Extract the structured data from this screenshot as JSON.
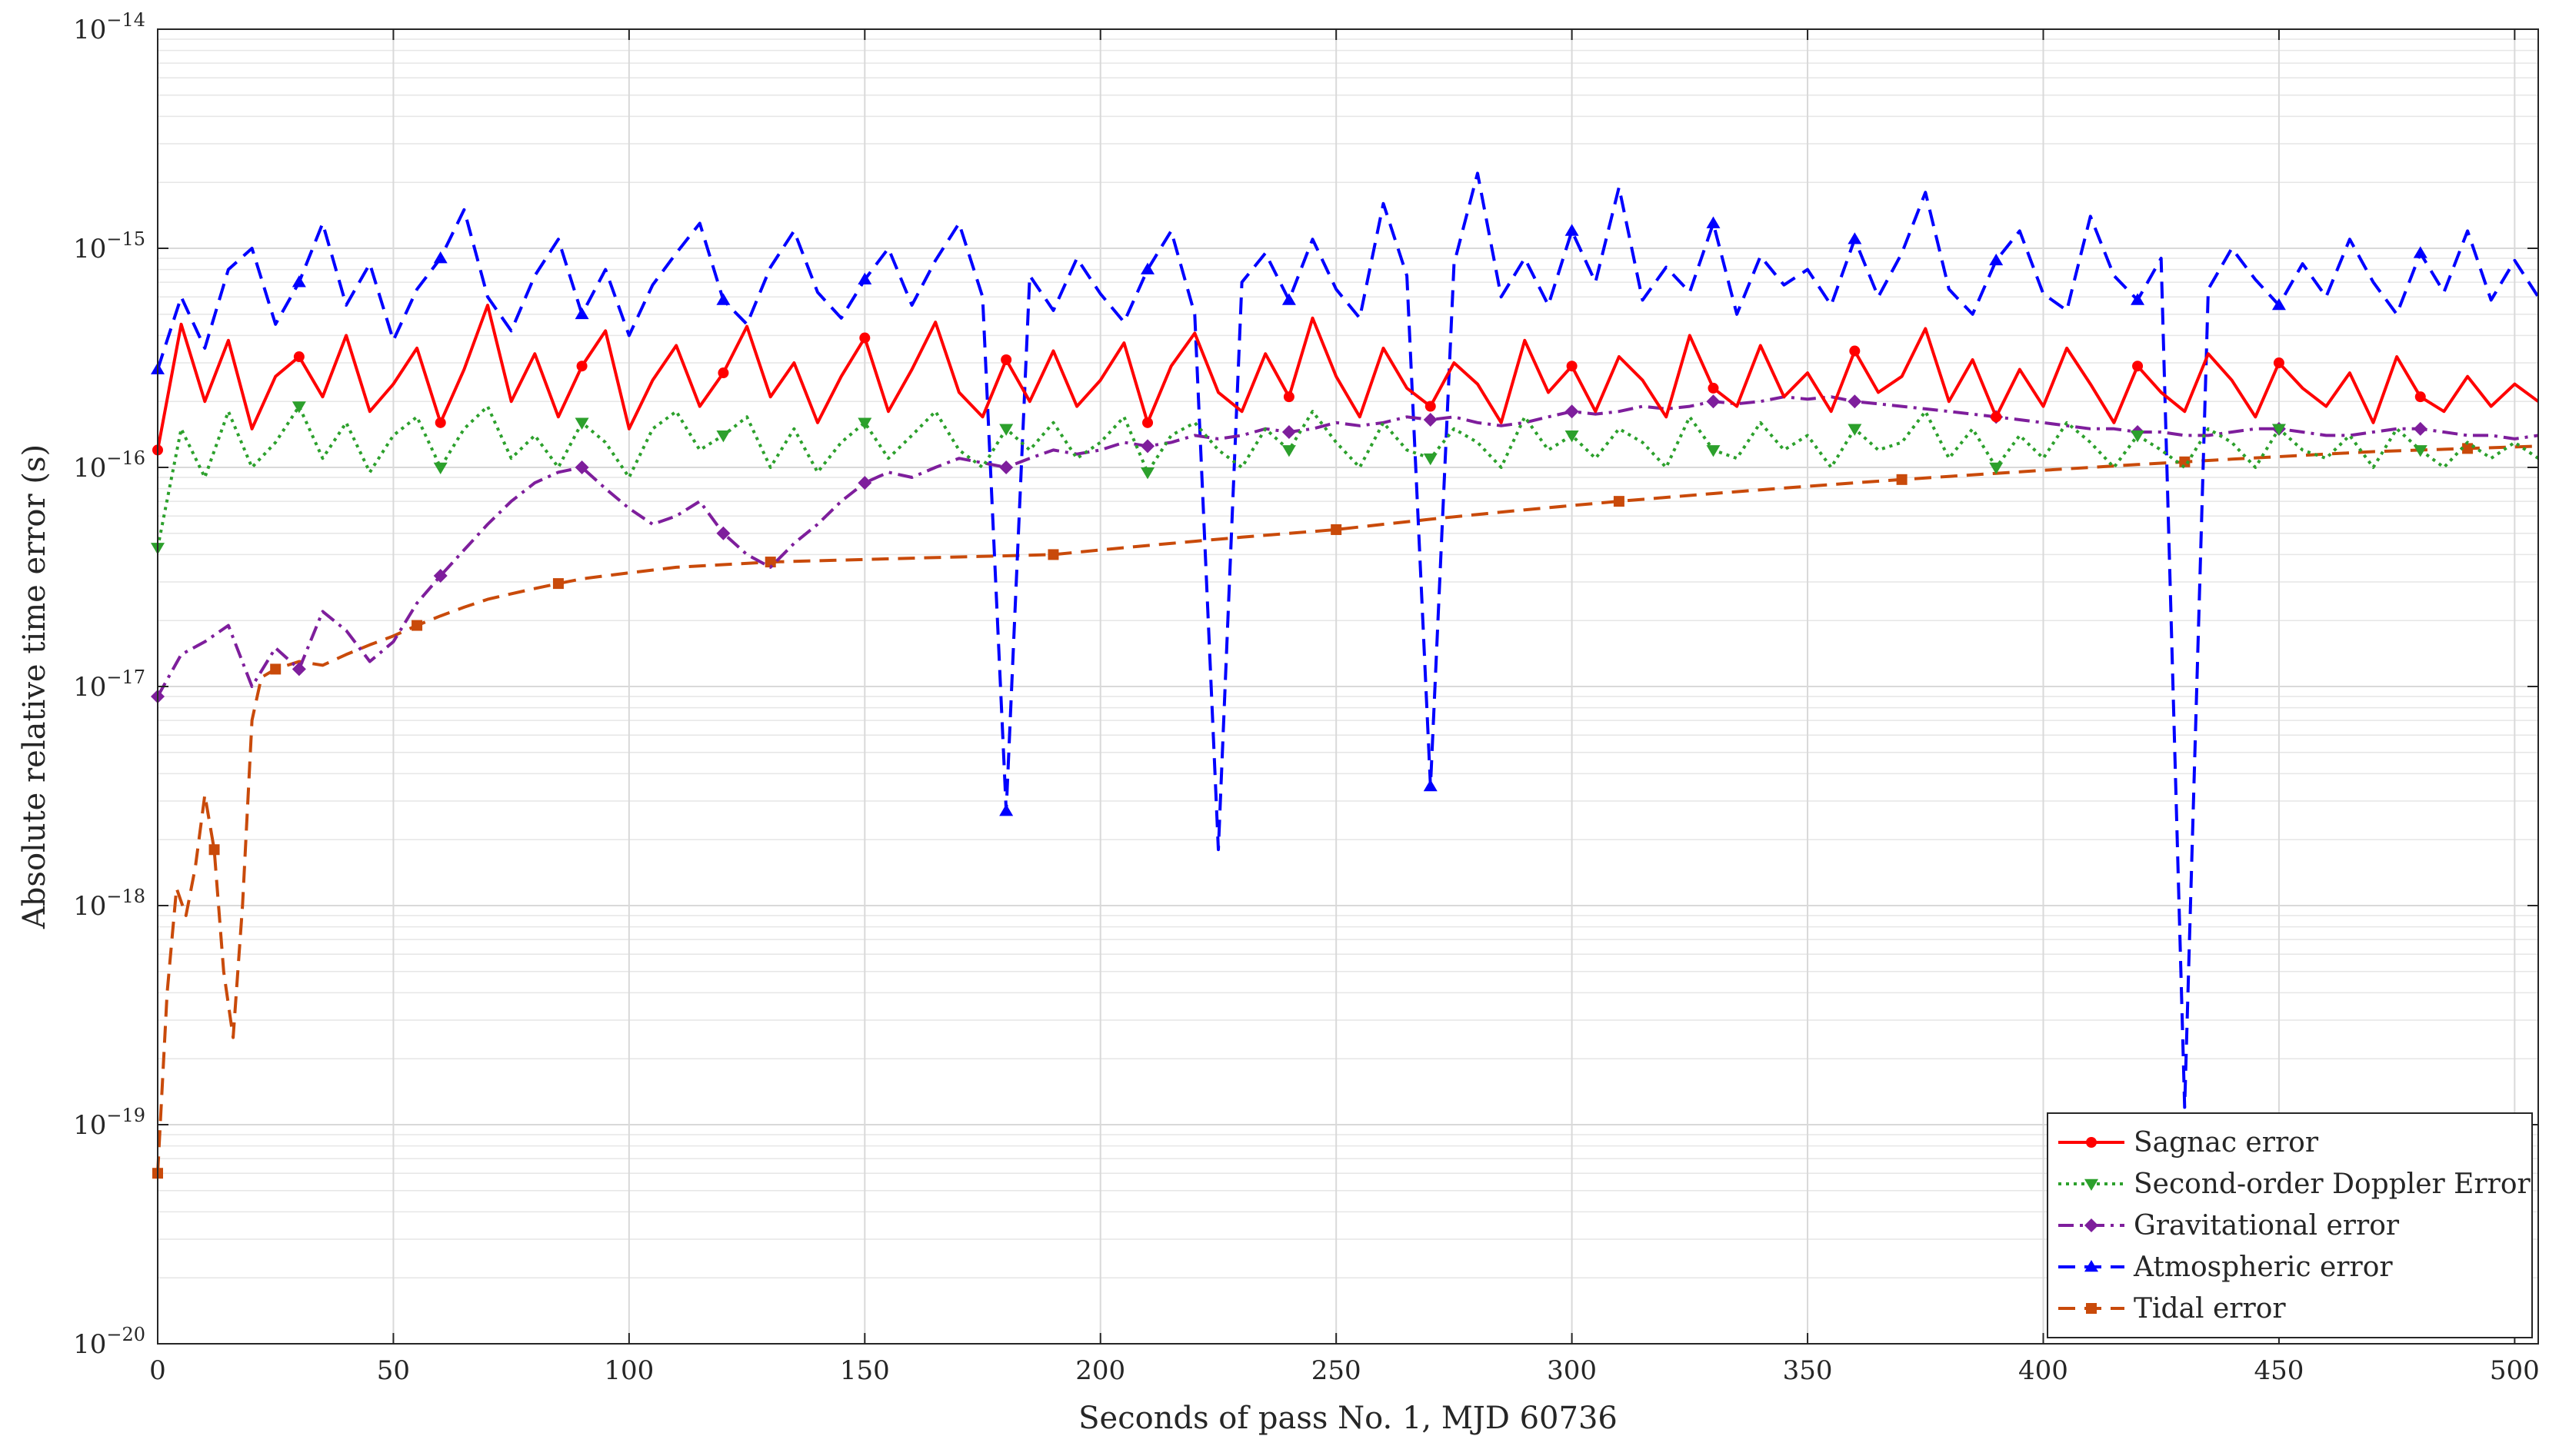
{
  "chart_data": {
    "type": "line",
    "title": "",
    "xlabel": "Seconds of pass No. 1, MJD 60736",
    "ylabel": "Absolute relative time error (s)",
    "xlim": [
      0,
      505
    ],
    "ylim": [
      1e-20,
      1e-14
    ],
    "yscale": "log",
    "grid": true,
    "minor_grid": true,
    "legend_position": "bottom-right",
    "x_ticks": [
      0,
      50,
      100,
      150,
      200,
      250,
      300,
      350,
      400,
      450,
      500
    ],
    "x_tick_labels": [
      "0",
      "50",
      "100",
      "150",
      "200",
      "250",
      "300",
      "350",
      "400",
      "450",
      "500"
    ],
    "y_ticks": [
      1e-20,
      1e-19,
      1e-18,
      1e-17,
      1e-16,
      1e-15,
      1e-14
    ],
    "y_tick_labels": [
      {
        "base": "10",
        "exp": "−20"
      },
      {
        "base": "10",
        "exp": "−19"
      },
      {
        "base": "10",
        "exp": "−18"
      },
      {
        "base": "10",
        "exp": "−17"
      },
      {
        "base": "10",
        "exp": "−16"
      },
      {
        "base": "10",
        "exp": "−15"
      },
      {
        "base": "10",
        "exp": "−14"
      }
    ],
    "series": [
      {
        "name": "Sagnac error",
        "color": "#ff0000",
        "style": "solid",
        "marker": "circle",
        "x": [
          0,
          5,
          10,
          15,
          20,
          25,
          30,
          35,
          40,
          45,
          50,
          55,
          60,
          65,
          70,
          75,
          80,
          85,
          90,
          95,
          100,
          105,
          110,
          115,
          120,
          125,
          130,
          135,
          140,
          145,
          150,
          155,
          160,
          165,
          170,
          175,
          180,
          185,
          190,
          195,
          200,
          205,
          210,
          215,
          220,
          225,
          230,
          235,
          240,
          245,
          250,
          255,
          260,
          265,
          270,
          275,
          280,
          285,
          290,
          295,
          300,
          305,
          310,
          315,
          320,
          325,
          330,
          335,
          340,
          345,
          350,
          355,
          360,
          365,
          370,
          375,
          380,
          385,
          390,
          395,
          400,
          405,
          410,
          415,
          420,
          425,
          430,
          435,
          440,
          445,
          450,
          455,
          460,
          465,
          470,
          475,
          480,
          485,
          490,
          495,
          500,
          505
        ],
        "y": [
          1.2e-16,
          4.5e-16,
          2e-16,
          3.8e-16,
          1.5e-16,
          2.6e-16,
          3.2e-16,
          2.1e-16,
          4e-16,
          1.8e-16,
          2.4e-16,
          3.5e-16,
          1.6e-16,
          2.8e-16,
          5.5e-16,
          2e-16,
          3.3e-16,
          1.7e-16,
          2.9e-16,
          4.2e-16,
          1.5e-16,
          2.5e-16,
          3.6e-16,
          1.9e-16,
          2.7e-16,
          4.4e-16,
          2.1e-16,
          3e-16,
          1.6e-16,
          2.6e-16,
          3.9e-16,
          1.8e-16,
          2.8e-16,
          4.6e-16,
          2.2e-16,
          1.7e-16,
          3.1e-16,
          2e-16,
          3.4e-16,
          1.9e-16,
          2.5e-16,
          3.7e-16,
          1.6e-16,
          2.9e-16,
          4.1e-16,
          2.2e-16,
          1.8e-16,
          3.3e-16,
          2.1e-16,
          4.8e-16,
          2.6e-16,
          1.7e-16,
          3.5e-16,
          2.3e-16,
          1.9e-16,
          3e-16,
          2.4e-16,
          1.6e-16,
          3.8e-16,
          2.2e-16,
          2.9e-16,
          1.8e-16,
          3.2e-16,
          2.5e-16,
          1.7e-16,
          4e-16,
          2.3e-16,
          1.9e-16,
          3.6e-16,
          2.1e-16,
          2.7e-16,
          1.8e-16,
          3.4e-16,
          2.2e-16,
          2.6e-16,
          4.3e-16,
          2e-16,
          3.1e-16,
          1.7e-16,
          2.8e-16,
          1.9e-16,
          3.5e-16,
          2.4e-16,
          1.6e-16,
          2.9e-16,
          2.2e-16,
          1.8e-16,
          3.3e-16,
          2.5e-16,
          1.7e-16,
          3e-16,
          2.3e-16,
          1.9e-16,
          2.7e-16,
          1.6e-16,
          3.2e-16,
          2.1e-16,
          1.8e-16,
          2.6e-16,
          1.9e-16,
          2.4e-16,
          2e-16
        ]
      },
      {
        "name": "Second-order Doppler Error",
        "color": "#2ca02c",
        "style": "dotted",
        "marker": "triangle-down",
        "x": [
          0,
          5,
          10,
          15,
          20,
          25,
          30,
          35,
          40,
          45,
          50,
          55,
          60,
          65,
          70,
          75,
          80,
          85,
          90,
          95,
          100,
          105,
          110,
          115,
          120,
          125,
          130,
          135,
          140,
          145,
          150,
          155,
          160,
          165,
          170,
          175,
          180,
          185,
          190,
          195,
          200,
          205,
          210,
          215,
          220,
          225,
          230,
          235,
          240,
          245,
          250,
          255,
          260,
          265,
          270,
          275,
          280,
          285,
          290,
          295,
          300,
          305,
          310,
          315,
          320,
          325,
          330,
          335,
          340,
          345,
          350,
          355,
          360,
          365,
          370,
          375,
          380,
          385,
          390,
          395,
          400,
          405,
          410,
          415,
          420,
          425,
          430,
          435,
          440,
          445,
          450,
          455,
          460,
          465,
          470,
          475,
          480,
          485,
          490,
          495,
          500,
          505
        ],
        "y": [
          4.3e-17,
          1.5e-16,
          9e-17,
          1.8e-16,
          1e-16,
          1.3e-16,
          1.9e-16,
          1.1e-16,
          1.6e-16,
          9.5e-17,
          1.4e-16,
          1.7e-16,
          1e-16,
          1.5e-16,
          1.9e-16,
          1.1e-16,
          1.4e-16,
          1e-16,
          1.6e-16,
          1.3e-16,
          9e-17,
          1.5e-16,
          1.8e-16,
          1.2e-16,
          1.4e-16,
          1.7e-16,
          1e-16,
          1.5e-16,
          9.5e-17,
          1.3e-16,
          1.6e-16,
          1.1e-16,
          1.4e-16,
          1.8e-16,
          1.2e-16,
          1e-16,
          1.5e-16,
          1.2e-16,
          1.6e-16,
          1.1e-16,
          1.3e-16,
          1.7e-16,
          9.5e-17,
          1.4e-16,
          1.6e-16,
          1.2e-16,
          1e-16,
          1.5e-16,
          1.2e-16,
          1.8e-16,
          1.3e-16,
          1e-16,
          1.6e-16,
          1.2e-16,
          1.1e-16,
          1.5e-16,
          1.3e-16,
          1e-16,
          1.7e-16,
          1.2e-16,
          1.4e-16,
          1.1e-16,
          1.5e-16,
          1.3e-16,
          1e-16,
          1.7e-16,
          1.2e-16,
          1.1e-16,
          1.6e-16,
          1.2e-16,
          1.4e-16,
          1e-16,
          1.5e-16,
          1.2e-16,
          1.3e-16,
          1.8e-16,
          1.1e-16,
          1.5e-16,
          1e-16,
          1.4e-16,
          1.1e-16,
          1.6e-16,
          1.3e-16,
          1e-16,
          1.4e-16,
          1.2e-16,
          1e-16,
          1.5e-16,
          1.3e-16,
          1e-16,
          1.5e-16,
          1.2e-16,
          1.1e-16,
          1.4e-16,
          1e-16,
          1.5e-16,
          1.2e-16,
          1e-16,
          1.3e-16,
          1.1e-16,
          1.3e-16,
          1.1e-16
        ]
      },
      {
        "name": "Gravitational error",
        "color": "#7e1e9c",
        "style": "dashdot",
        "marker": "diamond",
        "x": [
          0,
          5,
          10,
          15,
          20,
          25,
          30,
          35,
          40,
          45,
          50,
          55,
          60,
          65,
          70,
          75,
          80,
          85,
          90,
          95,
          100,
          105,
          110,
          115,
          120,
          125,
          130,
          135,
          140,
          145,
          150,
          155,
          160,
          165,
          170,
          175,
          180,
          185,
          190,
          195,
          200,
          205,
          210,
          215,
          220,
          225,
          230,
          235,
          240,
          245,
          250,
          255,
          260,
          265,
          270,
          275,
          280,
          285,
          290,
          295,
          300,
          305,
          310,
          315,
          320,
          325,
          330,
          335,
          340,
          345,
          350,
          355,
          360,
          365,
          370,
          375,
          380,
          385,
          390,
          395,
          400,
          405,
          410,
          415,
          420,
          425,
          430,
          435,
          440,
          445,
          450,
          455,
          460,
          465,
          470,
          475,
          480,
          485,
          490,
          495,
          500,
          505
        ],
        "y": [
          9e-18,
          1.4e-17,
          1.6e-17,
          1.9e-17,
          1e-17,
          1.5e-17,
          1.2e-17,
          2.2e-17,
          1.8e-17,
          1.3e-17,
          1.6e-17,
          2.4e-17,
          3.2e-17,
          4.2e-17,
          5.5e-17,
          7e-17,
          8.5e-17,
          9.5e-17,
          1e-16,
          8e-17,
          6.5e-17,
          5.5e-17,
          6e-17,
          7e-17,
          5e-17,
          4e-17,
          3.5e-17,
          4.5e-17,
          5.5e-17,
          7e-17,
          8.5e-17,
          9.5e-17,
          9e-17,
          1e-16,
          1.1e-16,
          1.05e-16,
          1e-16,
          1.1e-16,
          1.2e-16,
          1.15e-16,
          1.2e-16,
          1.3e-16,
          1.25e-16,
          1.3e-16,
          1.4e-16,
          1.35e-16,
          1.4e-16,
          1.5e-16,
          1.45e-16,
          1.5e-16,
          1.6e-16,
          1.55e-16,
          1.6e-16,
          1.7e-16,
          1.65e-16,
          1.7e-16,
          1.6e-16,
          1.55e-16,
          1.6e-16,
          1.7e-16,
          1.8e-16,
          1.75e-16,
          1.8e-16,
          1.9e-16,
          1.85e-16,
          1.9e-16,
          2e-16,
          1.95e-16,
          2e-16,
          2.1e-16,
          2.05e-16,
          2.1e-16,
          2e-16,
          1.95e-16,
          1.9e-16,
          1.85e-16,
          1.8e-16,
          1.75e-16,
          1.7e-16,
          1.65e-16,
          1.6e-16,
          1.55e-16,
          1.5e-16,
          1.5e-16,
          1.45e-16,
          1.45e-16,
          1.4e-16,
          1.4e-16,
          1.45e-16,
          1.5e-16,
          1.5e-16,
          1.45e-16,
          1.4e-16,
          1.4e-16,
          1.45e-16,
          1.5e-16,
          1.5e-16,
          1.45e-16,
          1.4e-16,
          1.4e-16,
          1.35e-16,
          1.4e-16
        ]
      },
      {
        "name": "Atmospheric error",
        "color": "#0000ff",
        "style": "dashed",
        "marker": "triangle-up",
        "x": [
          0,
          5,
          10,
          15,
          20,
          25,
          30,
          35,
          40,
          45,
          50,
          55,
          60,
          65,
          70,
          75,
          80,
          85,
          90,
          95,
          100,
          105,
          110,
          115,
          120,
          125,
          130,
          135,
          140,
          145,
          150,
          155,
          160,
          165,
          170,
          175,
          180,
          185,
          190,
          195,
          200,
          205,
          210,
          215,
          220,
          225,
          230,
          235,
          240,
          245,
          250,
          255,
          260,
          265,
          270,
          275,
          280,
          285,
          290,
          295,
          300,
          305,
          310,
          315,
          320,
          325,
          330,
          335,
          340,
          345,
          350,
          355,
          360,
          365,
          370,
          375,
          380,
          385,
          390,
          395,
          400,
          405,
          410,
          415,
          420,
          425,
          430,
          435,
          440,
          445,
          450,
          455,
          460,
          465,
          470,
          475,
          480,
          485,
          490,
          495,
          500,
          505
        ],
        "y": [
          2.8e-16,
          6e-16,
          3.5e-16,
          8e-16,
          1e-15,
          4.5e-16,
          7e-16,
          1.3e-15,
          5.5e-16,
          8.5e-16,
          3.8e-16,
          6.5e-16,
          9e-16,
          1.5e-15,
          6e-16,
          4.2e-16,
          7.5e-16,
          1.1e-15,
          5e-16,
          8e-16,
          4e-16,
          6.8e-16,
          9.5e-16,
          1.3e-15,
          5.8e-16,
          4.5e-16,
          8.2e-16,
          1.2e-15,
          6.3e-16,
          4.8e-16,
          7.2e-16,
          1e-15,
          5.5e-16,
          8.8e-16,
          1.3e-15,
          6e-16,
          2.7e-18,
          7.5e-16,
          5.2e-16,
          9e-16,
          6.2e-16,
          4.6e-16,
          8e-16,
          1.2e-15,
          5e-16,
          1.8e-18,
          7e-16,
          9.5e-16,
          5.8e-16,
          1.1e-15,
          6.5e-16,
          4.8e-16,
          1.6e-15,
          7.5e-16,
          3.5e-18,
          8.5e-16,
          2.2e-15,
          6e-16,
          9e-16,
          5.5e-16,
          1.2e-15,
          7e-16,
          1.9e-15,
          5.8e-16,
          8.2e-16,
          6.3e-16,
          1.3e-15,
          5e-16,
          9.2e-16,
          6.8e-16,
          8e-16,
          5.5e-16,
          1.1e-15,
          6e-16,
          9.5e-16,
          1.8e-15,
          6.5e-16,
          5e-16,
          8.8e-16,
          1.2e-15,
          6.2e-16,
          5.2e-16,
          1.4e-15,
          7.5e-16,
          5.8e-16,
          9e-16,
          1.2e-19,
          6.5e-16,
          1e-15,
          7.2e-16,
          5.5e-16,
          8.5e-16,
          6e-16,
          1.1e-15,
          7e-16,
          5e-16,
          9.5e-16,
          6.3e-16,
          1.2e-15,
          5.8e-16,
          8.8e-16,
          6e-16
        ]
      },
      {
        "name": "Tidal error",
        "color": "#c94a0a",
        "style": "dashed",
        "marker": "square",
        "x": [
          0,
          2,
          4,
          6,
          8,
          10,
          12,
          14,
          16,
          18,
          20,
          22,
          25,
          30,
          35,
          40,
          45,
          50,
          55,
          60,
          65,
          70,
          75,
          80,
          85,
          90,
          95,
          100,
          110,
          120,
          130,
          140,
          150,
          160,
          170,
          180,
          190,
          200,
          210,
          220,
          230,
          240,
          250,
          260,
          270,
          280,
          290,
          300,
          310,
          320,
          330,
          340,
          350,
          360,
          370,
          380,
          390,
          400,
          410,
          420,
          430,
          440,
          450,
          460,
          470,
          480,
          490,
          500,
          505
        ],
        "y": [
          6e-20,
          4e-19,
          1.2e-18,
          9e-19,
          1.5e-18,
          3.2e-18,
          1.8e-18,
          5e-19,
          2.5e-19,
          1e-18,
          7e-18,
          1.1e-17,
          1.2e-17,
          1.3e-17,
          1.25e-17,
          1.4e-17,
          1.55e-17,
          1.7e-17,
          1.9e-17,
          2.1e-17,
          2.3e-17,
          2.5e-17,
          2.65e-17,
          2.8e-17,
          2.95e-17,
          3.1e-17,
          3.2e-17,
          3.3e-17,
          3.5e-17,
          3.6e-17,
          3.7e-17,
          3.75e-17,
          3.8e-17,
          3.85e-17,
          3.9e-17,
          3.95e-17,
          4e-17,
          4.2e-17,
          4.4e-17,
          4.6e-17,
          4.8e-17,
          5e-17,
          5.2e-17,
          5.5e-17,
          5.8e-17,
          6.1e-17,
          6.4e-17,
          6.7e-17,
          7e-17,
          7.3e-17,
          7.6e-17,
          7.9e-17,
          8.2e-17,
          8.5e-17,
          8.8e-17,
          9.1e-17,
          9.4e-17,
          9.7e-17,
          1e-16,
          1.03e-16,
          1.06e-16,
          1.09e-16,
          1.12e-16,
          1.15e-16,
          1.18e-16,
          1.2e-16,
          1.22e-16,
          1.24e-16,
          1.25e-16
        ]
      }
    ]
  }
}
